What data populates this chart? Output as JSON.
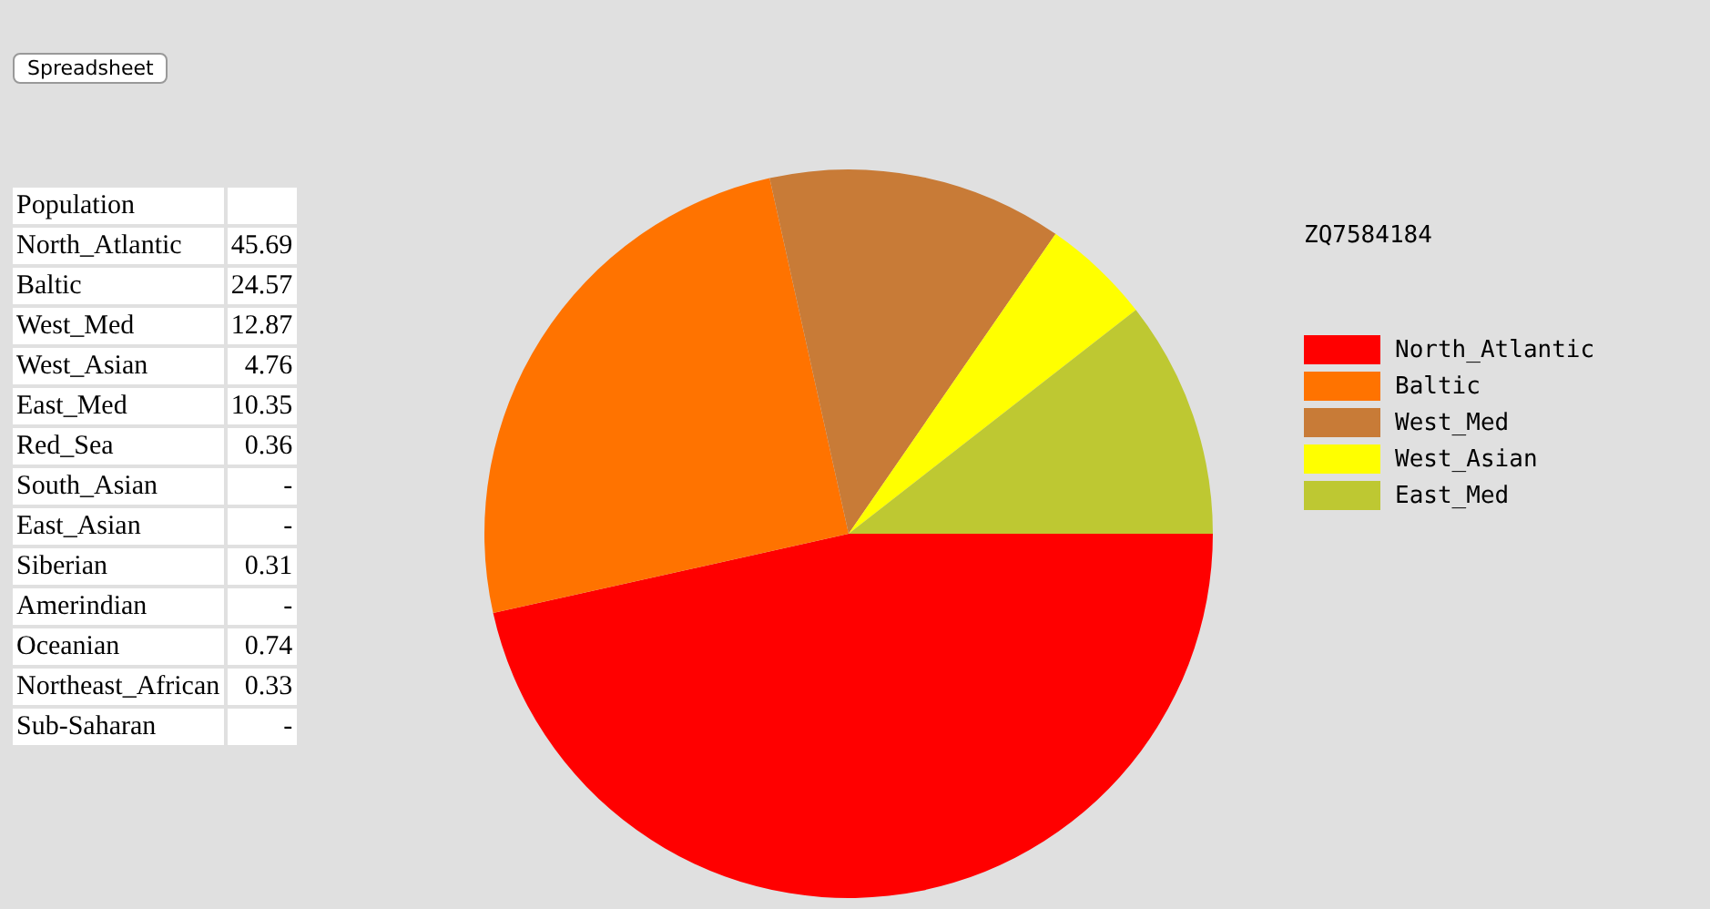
{
  "chart_data": [
    {
      "type": "other",
      "title": "Population",
      "categories": [
        "North_Atlantic",
        "Baltic",
        "West_Med",
        "West_Asian",
        "East_Med",
        "Red_Sea",
        "South_Asian",
        "East_Asian",
        "Siberian",
        "Amerindian",
        "Oceanian",
        "Northeast_African",
        "Sub-Saharan"
      ],
      "value_labels": [
        "45.69",
        "24.57",
        "12.87",
        "4.76",
        "10.35",
        "0.36",
        "-",
        "-",
        "0.31",
        "-",
        "0.74",
        "0.33",
        "-"
      ],
      "annotations": [
        "Spreadsheet"
      ]
    },
    {
      "type": "pie",
      "title": "ZQ7584184",
      "categories": [
        "North_Atlantic",
        "Baltic",
        "West_Med",
        "West_Asian",
        "East_Med"
      ],
      "values": [
        45.69,
        24.57,
        12.87,
        4.76,
        10.35
      ],
      "colors": [
        "#ff0000",
        "#ff7300",
        "#c87b37",
        "#ffff00",
        "#bec832"
      ],
      "legend": "right"
    }
  ]
}
